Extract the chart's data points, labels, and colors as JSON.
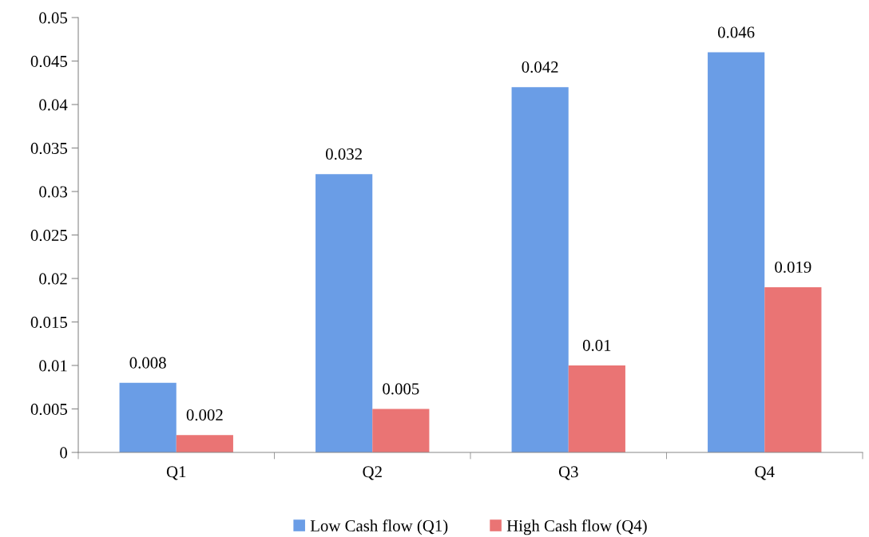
{
  "chart_data": {
    "type": "bar",
    "categories": [
      "Q1",
      "Q2",
      "Q3",
      "Q4"
    ],
    "series": [
      {
        "name": "Low Cash flow (Q1)",
        "color": "#6a9de6",
        "values": [
          0.008,
          0.032,
          0.042,
          0.046
        ]
      },
      {
        "name": "High Cash flow (Q4)",
        "color": "#ea7474",
        "values": [
          0.002,
          0.005,
          0.01,
          0.019
        ]
      }
    ],
    "ylim": [
      0,
      0.05
    ],
    "yticks": [
      0,
      0.005,
      0.01,
      0.015,
      0.02,
      0.025,
      0.03,
      0.035,
      0.04,
      0.045,
      0.05
    ],
    "data_labels": true,
    "grid": false,
    "legend": "bottom"
  }
}
